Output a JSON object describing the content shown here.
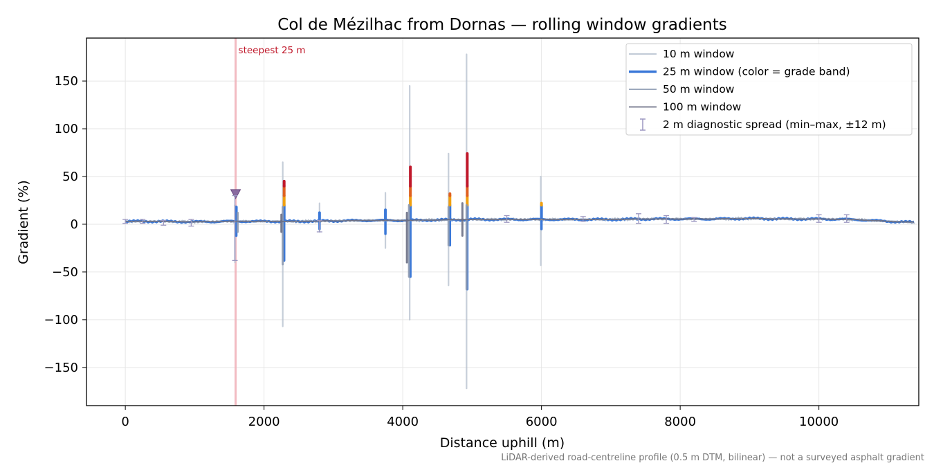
{
  "chart_data": {
    "type": "line",
    "title": "Col de Mézilhac from Dornas — rolling window gradients",
    "xlabel": "Distance uphill (m)",
    "ylabel": "Gradient (%)",
    "xlim": [
      -560,
      11440
    ],
    "ylim": [
      -190,
      195
    ],
    "xticks": [
      0,
      2000,
      4000,
      6000,
      8000,
      10000
    ],
    "yticks": [
      -150,
      -100,
      -50,
      0,
      50,
      100,
      150
    ],
    "grid": true,
    "legend_position": "top-right",
    "footnote": "LiDAR-derived road-centreline profile (0.5 m DTM, bilinear) — not a surveyed asphalt gradient",
    "baseline": {
      "x": [
        0,
        500,
        1000,
        1500,
        2000,
        2500,
        3000,
        3500,
        4000,
        4500,
        5000,
        5500,
        6000,
        6500,
        7000,
        7500,
        8000,
        8500,
        9000,
        9500,
        10000,
        10500,
        11000,
        11380
      ],
      "y": [
        3,
        3,
        2.5,
        3,
        3,
        3,
        3.5,
        4,
        4,
        4.5,
        5,
        5,
        5,
        5,
        5,
        5.5,
        5.5,
        5.5,
        6,
        5.5,
        5.5,
        5,
        3,
        2
      ]
    },
    "series": [
      {
        "name": "10 m window",
        "color": "#b8c2d0",
        "spikes": [
          {
            "x": 1580,
            "max": 20,
            "min": -40
          },
          {
            "x": 2270,
            "max": 65,
            "min": -107
          },
          {
            "x": 2800,
            "max": 22,
            "min": -8
          },
          {
            "x": 3750,
            "max": 33,
            "min": -25
          },
          {
            "x": 4100,
            "max": 145,
            "min": -100
          },
          {
            "x": 4660,
            "max": 74,
            "min": -64
          },
          {
            "x": 4920,
            "max": 178,
            "min": -172
          },
          {
            "x": 5990,
            "max": 50,
            "min": -43
          }
        ]
      },
      {
        "name": "25 m window (color = grade band)",
        "color": "#3a78d8",
        "spikes": [
          {
            "x": 1600,
            "max": 18,
            "min": -12
          },
          {
            "x": 2290,
            "max": 45,
            "min": -38
          },
          {
            "x": 2800,
            "max": 12,
            "min": -5
          },
          {
            "x": 3750,
            "max": 15,
            "min": -10
          },
          {
            "x": 4110,
            "max": 60,
            "min": -55
          },
          {
            "x": 4680,
            "max": 32,
            "min": -22
          },
          {
            "x": 4930,
            "max": 74,
            "min": -68
          },
          {
            "x": 6000,
            "max": 22,
            "min": -5
          }
        ]
      },
      {
        "name": "50 m window",
        "color": "#8e9bb2",
        "spikes": [
          {
            "x": 1620,
            "max": 12,
            "min": -8
          },
          {
            "x": 2270,
            "max": 18,
            "min": -42
          },
          {
            "x": 4090,
            "max": 20,
            "min": -55
          },
          {
            "x": 4660,
            "max": 18,
            "min": -22
          },
          {
            "x": 4920,
            "max": 20,
            "min": -68
          }
        ]
      },
      {
        "name": "100 m window",
        "color": "#6b6f85",
        "spikes": [
          {
            "x": 2250,
            "max": 10,
            "min": -8
          },
          {
            "x": 4060,
            "max": 12,
            "min": -40
          },
          {
            "x": 4860,
            "max": 22,
            "min": -12
          }
        ]
      }
    ],
    "grade_band_colors": [
      "#3a78d8",
      "#f0a010",
      "#e06020",
      "#c0182a"
    ],
    "band_thresholds": [
      20,
      30,
      40
    ],
    "diagnostic_spread": {
      "name": "2 m diagnostic spread (min–max, ±12 m)",
      "color": "#9a96c0",
      "points": [
        {
          "x": 0,
          "low": 1,
          "high": 5
        },
        {
          "x": 250,
          "low": 1,
          "high": 5
        },
        {
          "x": 550,
          "low": -1,
          "high": 4
        },
        {
          "x": 950,
          "low": -2,
          "high": 5
        },
        {
          "x": 1580,
          "low": -38,
          "high": 30
        },
        {
          "x": 2800,
          "low": -8,
          "high": 4
        },
        {
          "x": 5500,
          "low": 2,
          "high": 9
        },
        {
          "x": 6600,
          "low": 3,
          "high": 8
        },
        {
          "x": 7400,
          "low": 1,
          "high": 11
        },
        {
          "x": 7800,
          "low": 1,
          "high": 9
        },
        {
          "x": 8200,
          "low": 3,
          "high": 7
        },
        {
          "x": 10000,
          "low": 2,
          "high": 10
        },
        {
          "x": 10400,
          "low": 2,
          "high": 10
        }
      ]
    },
    "annotation": {
      "label": "steepest 25 m",
      "x": 1590,
      "marker_y": 32,
      "color": "#c0182a"
    }
  }
}
